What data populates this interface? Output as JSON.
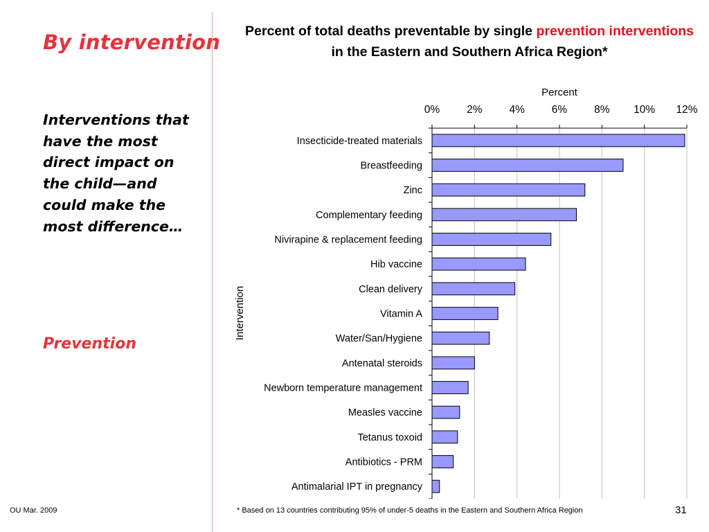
{
  "slide": {
    "title": "By intervention",
    "body_text": "Interventions that have the most direct impact on the child—and could make the most difference…",
    "section_label": "Prevention",
    "footer_left": "OU Mar. 2009",
    "footnote": "* Based on 13 countries contributing 95% of under-5 deaths in the Eastern and Southern Africa Region",
    "page_number": "31"
  },
  "chart_title": {
    "part1": "Percent of total deaths preventable by single ",
    "highlight": "prevention interventions",
    "part2": " in the Eastern and Southern Africa Region*"
  },
  "colors": {
    "accent": "#e8323b",
    "title_highlight": "#e8101a",
    "bar_fill": "#9999ff",
    "bar_stroke": "#000000",
    "grid": "#c0c0c0",
    "divider": "#f2a0a4"
  },
  "chart_data": {
    "type": "bar",
    "orientation": "horizontal",
    "title": "Percent of total deaths preventable by single prevention interventions in the Eastern and Southern Africa Region*",
    "xlabel": "Percent",
    "ylabel": "Intervention",
    "xaxis_position": "top",
    "xlim": [
      0,
      12
    ],
    "xticks": [
      0,
      2,
      4,
      6,
      8,
      10,
      12
    ],
    "xtick_labels": [
      "0%",
      "2%",
      "4%",
      "6%",
      "8%",
      "10%",
      "12%"
    ],
    "grid": true,
    "categories": [
      "Insecticide-treated materials",
      "Breastfeeding",
      "Zinc",
      "Complementary feeding",
      "Nivirapine & replacement feeding",
      "Hib vaccine",
      "Clean delivery",
      "Vitamin A",
      "Water/San/Hygiene",
      "Antenatal steroids",
      "Newborn temperature management",
      "Measles vaccine",
      "Tetanus toxoid",
      "Antibiotics - PRM",
      "Antimalarial IPT in pregnancy"
    ],
    "values": [
      11.9,
      9.0,
      7.2,
      6.8,
      5.6,
      4.4,
      3.9,
      3.1,
      2.7,
      2.0,
      1.7,
      1.3,
      1.2,
      1.0,
      0.35
    ]
  }
}
